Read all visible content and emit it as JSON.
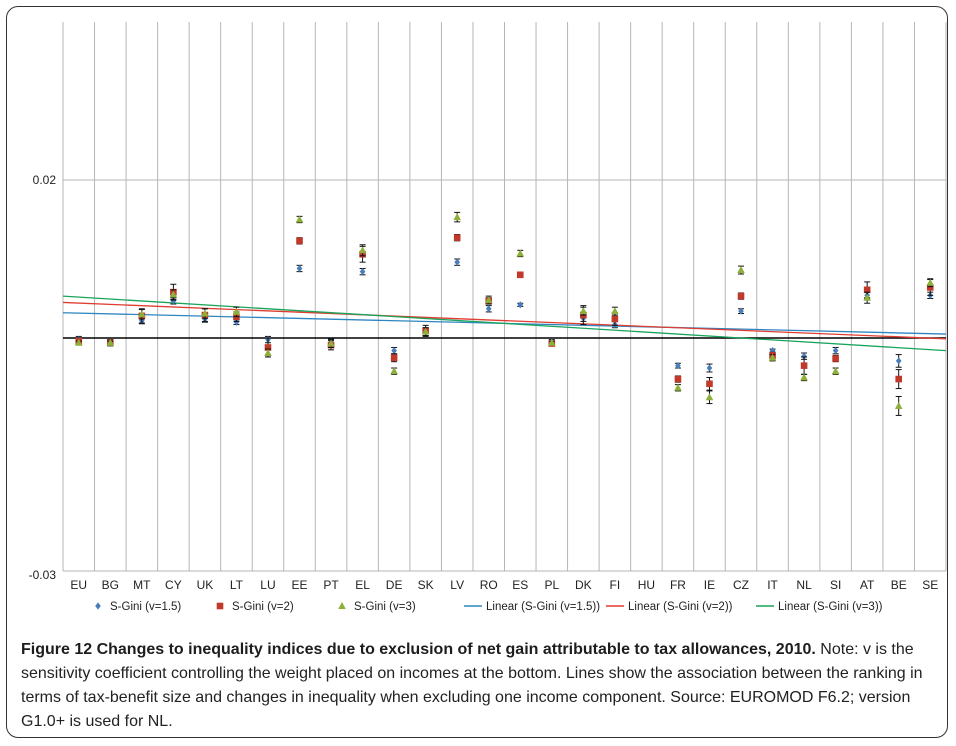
{
  "chart_data": {
    "type": "scatter",
    "title": "",
    "xlabel": "",
    "ylabel": "",
    "categories": [
      "EU",
      "BG",
      "MT",
      "CY",
      "UK",
      "LT",
      "LU",
      "EE",
      "PT",
      "EL",
      "DE",
      "SK",
      "LV",
      "RO",
      "ES",
      "PL",
      "DK",
      "FI",
      "HU",
      "FR",
      "IE",
      "CZ",
      "IT",
      "NL",
      "SI",
      "AT",
      "BE",
      "SE"
    ],
    "ylim": [
      -0.03,
      0.03
    ],
    "yticks": [
      {
        "value": 0.02,
        "label": "0.02"
      },
      {
        "value": -0.03,
        "label": "-0.03"
      }
    ],
    "grid": "vertical lines at each category; horizontal line at 0.02; black zero line",
    "legend_position": "bottom",
    "series": [
      {
        "name": "S-Gini (v=1.5)",
        "marker": "diamond",
        "color": "#4a7ebb",
        "values": [
          -0.0002,
          -0.0005,
          0.0022,
          0.0047,
          0.0024,
          0.002,
          -0.0002,
          0.0088,
          -0.0005,
          0.0084,
          -0.0016,
          0.0008,
          0.0096,
          0.0037,
          0.0042,
          -0.0005,
          0.0025,
          0.0017,
          null,
          -0.0035,
          -0.0038,
          0.0034,
          -0.0016,
          -0.0023,
          -0.0016,
          0.0054,
          -0.0029,
          0.0054
        ],
        "errors": [
          0.0004,
          0.0003,
          0.0004,
          0.0004,
          0.0004,
          0.0003,
          0.0004,
          0.0004,
          0.0004,
          0.0004,
          0.0004,
          0.0005,
          0.0004,
          0.0004,
          0.0002,
          0.0003,
          0.0004,
          0.0004,
          null,
          0.0003,
          0.0005,
          0.0003,
          0.0002,
          0.0004,
          0.0004,
          0.0004,
          0.0008,
          0.0004
        ]
      },
      {
        "name": "S-Gini (v=2)",
        "marker": "square",
        "color": "#c0392b",
        "values": [
          -0.0004,
          -0.0006,
          0.0028,
          0.0058,
          0.0029,
          0.0027,
          -0.0012,
          0.0123,
          -0.0009,
          0.0106,
          -0.0025,
          0.0009,
          0.0127,
          0.0047,
          0.008,
          -0.0007,
          0.0029,
          0.0024,
          null,
          -0.0052,
          -0.0058,
          0.0053,
          -0.0022,
          -0.0035,
          -0.0026,
          0.0061,
          -0.0052,
          0.0064
        ],
        "errors": [
          0.0004,
          0.0004,
          0.0009,
          0.001,
          0.0008,
          0.0006,
          0.0012,
          0.0004,
          0.0006,
          0.001,
          0.0005,
          0.0007,
          0.0004,
          0.0004,
          0.0003,
          0.0002,
          0.0012,
          0.0008,
          null,
          0.0004,
          0.0008,
          0.0004,
          0.0004,
          0.0011,
          0.0004,
          0.001,
          0.0012,
          0.001
        ]
      },
      {
        "name": "S-Gini (v=3)",
        "marker": "triangle",
        "color": "#8db03a",
        "values": [
          -0.0006,
          -0.0006,
          0.003,
          0.0055,
          0.0031,
          0.0033,
          -0.0019,
          0.015,
          -0.0007,
          0.0111,
          -0.0042,
          0.0008,
          0.0153,
          0.0048,
          0.0107,
          -0.0006,
          0.0034,
          0.0034,
          null,
          -0.0063,
          -0.0075,
          0.0086,
          -0.0025,
          -0.005,
          -0.0042,
          0.0051,
          -0.0086,
          0.007
        ],
        "errors": [
          0.0002,
          0.0002,
          0.0006,
          0.0006,
          0.0006,
          0.0006,
          0.0005,
          0.0004,
          0.0005,
          0.0007,
          0.0004,
          0.0005,
          0.0006,
          0.0005,
          0.0004,
          0.0002,
          0.0005,
          0.0005,
          null,
          0.0004,
          0.0008,
          0.0005,
          0.0004,
          0.0004,
          0.0004,
          0.0007,
          0.0012,
          0.0005
        ]
      }
    ],
    "trendlines": [
      {
        "name": "Linear (S-Gini (v=1.5))",
        "color": "#2e86c1",
        "start": 0.0032,
        "end": 0.0005
      },
      {
        "name": "Linear (S-Gini (v=2))",
        "color": "#e03c31",
        "start": 0.0045,
        "end": -0.0001
      },
      {
        "name": "Linear (S-Gini (v=3))",
        "color": "#1aa35a",
        "start": 0.0053,
        "end": -0.0016
      }
    ]
  },
  "caption": {
    "title": "Figure 12 Changes to inequality indices due to exclusion of net gain attributable to tax allowances, 2010.",
    "text": " Note: v is the sensitivity coefficient controlling the weight placed on incomes at the bottom. Lines show the association between the ranking in terms of tax-benefit size and changes in inequality when excluding one income component. Source: EUROMOD F6.2; version G1.0+ is used for NL."
  }
}
